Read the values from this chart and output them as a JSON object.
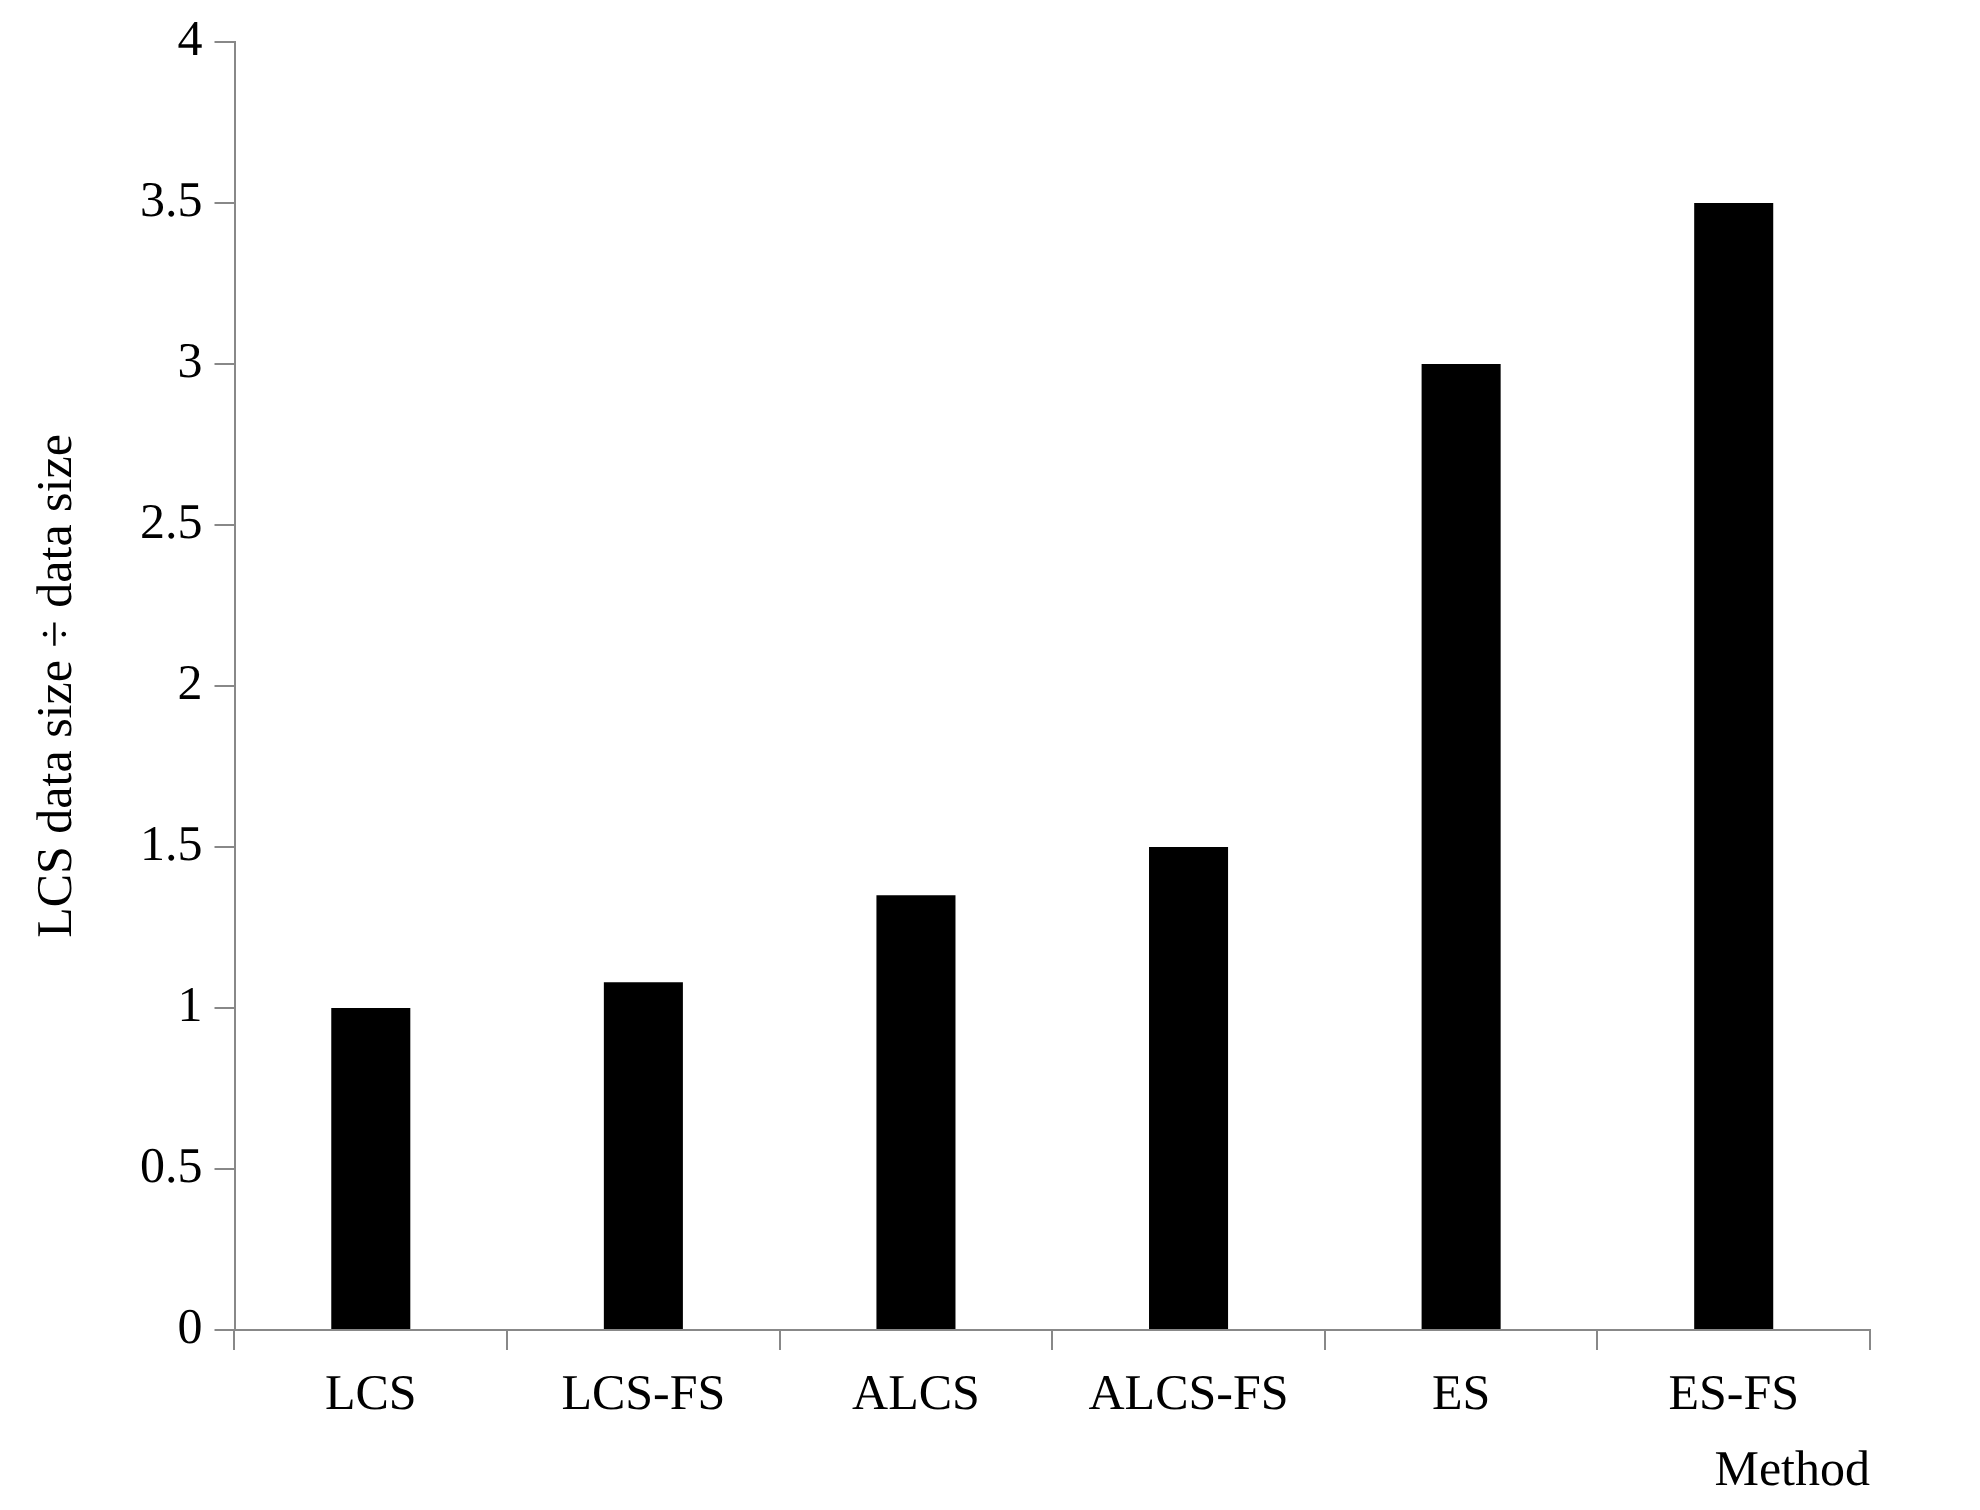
{
  "chart_data": {
    "type": "bar",
    "xlabel": "Method",
    "ylabel": "LCS data size ÷ data size",
    "categories": [
      "LCS",
      "LCS-FS",
      "ALCS",
      "ALCS-FS",
      "ES",
      "ES-FS"
    ],
    "values": [
      1.0,
      1.08,
      1.35,
      1.5,
      3.0,
      3.5
    ],
    "color": "#000000",
    "ylim": [
      0,
      4
    ],
    "yticks": [
      0,
      0.5,
      1,
      1.5,
      2,
      2.5,
      3,
      3.5,
      4
    ],
    "grid": false,
    "legend": false
  }
}
